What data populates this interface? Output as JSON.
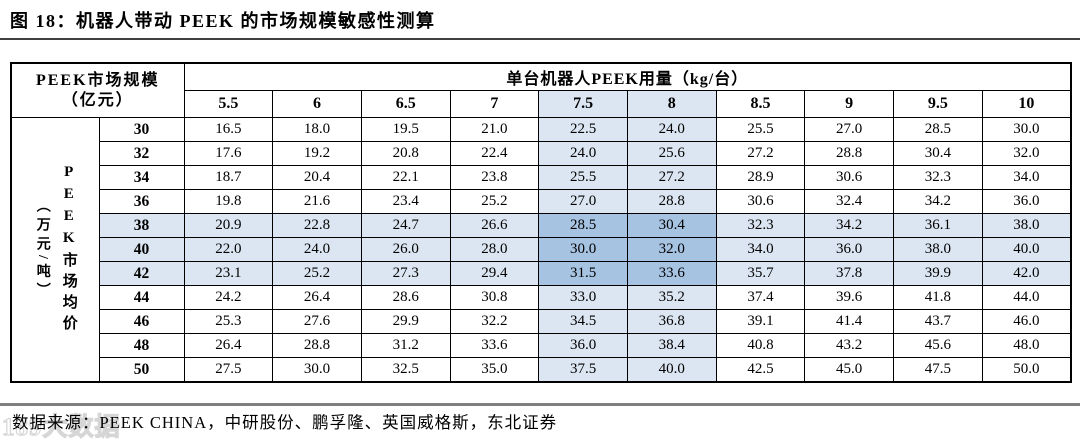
{
  "title": "图 18：机器人带动 PEEK 的市场规模敏感性测算",
  "source_note": "数据来源：PEEK CHINA，中研股份、鹏孚隆、英国威格斯，东北证券",
  "watermark": "189大数据",
  "colors": {
    "highlight_light": "#dce6f2",
    "highlight_dark": "#a6c3e2",
    "table_border": "#000000",
    "title_rule": "#3f3f3f",
    "footer_rule": "#7f7f7f"
  },
  "table": {
    "corner_line1": "PEEK市场规模",
    "corner_line2": "（亿元）",
    "usage_header": "单台机器人PEEK用量（kg/台）",
    "col_headers": [
      "5.5",
      "6",
      "6.5",
      "7",
      "7.5",
      "8",
      "8.5",
      "9",
      "9.5",
      "10"
    ],
    "highlight_col_indices": [
      4,
      5
    ],
    "price_axis_unit": "（万元/吨）",
    "price_axis_label": "PEEK市场均价",
    "row_headers": [
      "30",
      "32",
      "34",
      "36",
      "38",
      "40",
      "42",
      "44",
      "46",
      "48",
      "50"
    ],
    "highlight_row_indices": [
      4,
      5,
      6
    ],
    "cells": [
      [
        "16.5",
        "18.0",
        "19.5",
        "21.0",
        "22.5",
        "24.0",
        "25.5",
        "27.0",
        "28.5",
        "30.0"
      ],
      [
        "17.6",
        "19.2",
        "20.8",
        "22.4",
        "24.0",
        "25.6",
        "27.2",
        "28.8",
        "30.4",
        "32.0"
      ],
      [
        "18.7",
        "20.4",
        "22.1",
        "23.8",
        "25.5",
        "27.2",
        "28.9",
        "30.6",
        "32.3",
        "34.0"
      ],
      [
        "19.8",
        "21.6",
        "23.4",
        "25.2",
        "27.0",
        "28.8",
        "30.6",
        "32.4",
        "34.2",
        "36.0"
      ],
      [
        "20.9",
        "22.8",
        "24.7",
        "26.6",
        "28.5",
        "30.4",
        "32.3",
        "34.2",
        "36.1",
        "38.0"
      ],
      [
        "22.0",
        "24.0",
        "26.0",
        "28.0",
        "30.0",
        "32.0",
        "34.0",
        "36.0",
        "38.0",
        "40.0"
      ],
      [
        "23.1",
        "25.2",
        "27.3",
        "29.4",
        "31.5",
        "33.6",
        "35.7",
        "37.8",
        "39.9",
        "42.0"
      ],
      [
        "24.2",
        "26.4",
        "28.6",
        "30.8",
        "33.0",
        "35.2",
        "37.4",
        "39.6",
        "41.8",
        "44.0"
      ],
      [
        "25.3",
        "27.6",
        "29.9",
        "32.2",
        "34.5",
        "36.8",
        "39.1",
        "41.4",
        "43.7",
        "46.0"
      ],
      [
        "26.4",
        "28.8",
        "31.2",
        "33.6",
        "36.0",
        "38.4",
        "40.8",
        "43.2",
        "45.6",
        "48.0"
      ],
      [
        "27.5",
        "30.0",
        "32.5",
        "35.0",
        "37.5",
        "40.0",
        "42.5",
        "45.0",
        "47.5",
        "50.0"
      ]
    ]
  },
  "chart_data": {
    "type": "table",
    "title": "机器人带动PEEK的市场规模敏感性测算",
    "columns_label": "单台机器人PEEK用量（kg/台）",
    "columns": [
      5.5,
      6,
      6.5,
      7,
      7.5,
      8,
      8.5,
      9,
      9.5,
      10
    ],
    "rows_label": "PEEK市场均价（万元/吨）",
    "rows": [
      30,
      32,
      34,
      36,
      38,
      40,
      42,
      44,
      46,
      48,
      50
    ],
    "values_label": "PEEK市场规模（亿元）",
    "values": [
      [
        16.5,
        18.0,
        19.5,
        21.0,
        22.5,
        24.0,
        25.5,
        27.0,
        28.5,
        30.0
      ],
      [
        17.6,
        19.2,
        20.8,
        22.4,
        24.0,
        25.6,
        27.2,
        28.8,
        30.4,
        32.0
      ],
      [
        18.7,
        20.4,
        22.1,
        23.8,
        25.5,
        27.2,
        28.9,
        30.6,
        32.3,
        34.0
      ],
      [
        19.8,
        21.6,
        23.4,
        25.2,
        27.0,
        28.8,
        30.6,
        32.4,
        34.2,
        36.0
      ],
      [
        20.9,
        22.8,
        24.7,
        26.6,
        28.5,
        30.4,
        32.3,
        34.2,
        36.1,
        38.0
      ],
      [
        22.0,
        24.0,
        26.0,
        28.0,
        30.0,
        32.0,
        34.0,
        36.0,
        38.0,
        40.0
      ],
      [
        23.1,
        25.2,
        27.3,
        29.4,
        31.5,
        33.6,
        35.7,
        37.8,
        39.9,
        42.0
      ],
      [
        24.2,
        26.4,
        28.6,
        30.8,
        33.0,
        35.2,
        37.4,
        39.6,
        41.8,
        44.0
      ],
      [
        25.3,
        27.6,
        29.9,
        32.2,
        34.5,
        36.8,
        39.1,
        41.4,
        43.7,
        46.0
      ],
      [
        26.4,
        28.8,
        31.2,
        33.6,
        36.0,
        38.4,
        40.8,
        43.2,
        45.6,
        48.0
      ],
      [
        27.5,
        30.0,
        32.5,
        35.0,
        37.5,
        40.0,
        42.5,
        45.0,
        47.5,
        50.0
      ]
    ],
    "highlighted_columns": [
      7.5,
      8
    ],
    "highlighted_rows": [
      38,
      40,
      42
    ]
  }
}
